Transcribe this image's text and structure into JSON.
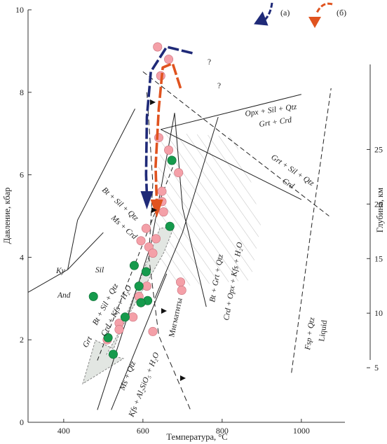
{
  "chart_data": {
    "type": "scatter",
    "title": "",
    "xlabel": "Температура, °C",
    "ylabel": "Давление, кбар",
    "y2label": "Глубина, км",
    "xlim": [
      310,
      1110
    ],
    "ylim": [
      0,
      10
    ],
    "y2lim": [
      0,
      37.8
    ],
    "x_ticks": [
      "400",
      "600",
      "800",
      "1000"
    ],
    "y_ticks": [
      "0",
      "2",
      "4",
      "6",
      "8",
      "10"
    ],
    "y2_ticks": [
      "5",
      "10",
      "15",
      "20",
      "25"
    ],
    "x_tick_values": [
      400,
      600,
      800,
      1000
    ],
    "y_tick_values": [
      0,
      2,
      4,
      6,
      8,
      10
    ],
    "y2_tick_values": [
      5,
      10,
      15,
      20,
      25
    ],
    "grid": false,
    "legend": {
      "position": "top-right",
      "items": [
        {
          "label": "(а)",
          "color": "#1f2a78"
        },
        {
          "label": "(б)",
          "color": "#e0531f"
        }
      ]
    },
    "lines": {
      "ky_and": [
        [
          310,
          3.15
        ],
        [
          410,
          3.7
        ]
      ],
      "and_sil": [
        [
          410,
          3.7
        ],
        [
          435,
          4.9
        ],
        [
          580,
          7.6
        ]
      ],
      "ky_sil": [
        [
          410,
          3.7
        ],
        [
          500,
          4.6
        ]
      ],
      "opx_sil_qtz": [
        [
          645,
          7.1
        ],
        [
          1000,
          7.95
        ]
      ],
      "grt_crd": [
        [
          645,
          7.1
        ],
        [
          1000,
          5.4
        ]
      ],
      "bt_grt_qtz": [
        [
          680,
          7.5
        ],
        [
          700,
          5.2
        ],
        [
          760,
          2.8
        ]
      ],
      "crd_opx_kfs": [
        [
          790,
          7.4
        ],
        [
          700,
          4.6
        ],
        [
          630,
          3.0
        ]
      ],
      "ms_qtz": [
        [
          485,
          0.3
        ],
        [
          620,
          4.3
        ],
        [
          680,
          7.5
        ]
      ],
      "kfs_alsio5": [
        [
          520,
          0.3
        ],
        [
          660,
          3.6
        ]
      ],
      "bt_sil_qtz": [
        [
          485,
          1.5
        ],
        [
          680,
          6.3
        ]
      ],
      "fsp_qtz": [
        [
          975,
          1.2
        ],
        [
          1035,
          5.4
        ],
        [
          1075,
          8.1
        ]
      ],
      "migmatites": [
        [
          610,
          8.0
        ],
        [
          625,
          5.8
        ],
        [
          615,
          4.0
        ],
        [
          640,
          2.1
        ],
        [
          720,
          0.3
        ]
      ],
      "upper_right_dashed": [
        [
          600,
          8.5
        ],
        [
          760,
          7.3
        ],
        [
          1070,
          5.0
        ]
      ]
    },
    "series": [
      {
        "name": "",
        "marker": "pink",
        "color": "#f4a0a8",
        "points": [
          [
            637,
            9.1
          ],
          [
            665,
            8.8
          ],
          [
            645,
            8.4
          ],
          [
            640,
            6.9
          ],
          [
            665,
            6.6
          ],
          [
            690,
            6.05
          ],
          [
            648,
            5.6
          ],
          [
            648,
            5.35
          ],
          [
            652,
            5.1
          ],
          [
            633,
            4.45
          ],
          [
            608,
            4.7
          ],
          [
            595,
            4.4
          ],
          [
            615,
            4.25
          ],
          [
            625,
            4.1
          ],
          [
            610,
            3.3
          ],
          [
            590,
            3.05
          ],
          [
            595,
            2.9
          ],
          [
            575,
            2.55
          ],
          [
            540,
            2.4
          ],
          [
            540,
            2.25
          ],
          [
            510,
            2.0
          ],
          [
            625,
            2.2
          ],
          [
            695,
            3.4
          ],
          [
            698,
            3.2
          ]
        ]
      },
      {
        "name": "",
        "marker": "green",
        "color": "#159a4c",
        "points": [
          [
            673,
            6.35
          ],
          [
            668,
            4.75
          ],
          [
            578,
            3.8
          ],
          [
            608,
            3.65
          ],
          [
            590,
            3.3
          ],
          [
            612,
            2.95
          ],
          [
            595,
            2.9
          ],
          [
            475,
            3.05
          ],
          [
            555,
            2.55
          ],
          [
            512,
            2.05
          ],
          [
            525,
            1.65
          ]
        ]
      }
    ],
    "paths": [
      {
        "label": "(а)",
        "color": "#1f2a78",
        "points": [
          [
            725,
            8.95
          ],
          [
            660,
            9.1
          ],
          [
            620,
            8.5
          ],
          [
            610,
            7.4
          ],
          [
            608,
            6.0
          ],
          [
            610,
            5.5
          ]
        ]
      },
      {
        "label": "(б)",
        "color": "#e0531f",
        "points": [
          [
            695,
            8.1
          ],
          [
            675,
            8.7
          ],
          [
            650,
            8.6
          ],
          [
            640,
            7.6
          ],
          [
            632,
            6.2
          ],
          [
            635,
            5.3
          ]
        ]
      }
    ],
    "labels": {
      "ky": "Ky",
      "and": "And",
      "sil": "Sil",
      "opx": "Opx + Sil + Qtz",
      "grt_crd": "Grt + Crd",
      "grt_sil_qtz": "Grt + Sil + Qtz",
      "crd": "Crd",
      "bt_sil_qtz_top": "Bt + Sil + Qtz",
      "ms_crd": "Ms + Crd",
      "bt_sil_qtz_low": "Bt + Sil + Qtz",
      "crd_kfs_h2o": "Crd + Kfs + H₂O",
      "grt": "Grt",
      "bt_grt_qtz": "Bt + Grt + Qtz",
      "crd_opx_kfs": "Crd + Opx + Kfs + H₂O",
      "migmatites": "Мигматиты",
      "ms_qtz": "Ms + Qtz",
      "kfs_alsio5": "Kfs + Al₂SiO₅ + H₂O",
      "fsp_qtz": "Fsp + Qtz",
      "liquid": "Liquid",
      "q1": "?",
      "q2": "?"
    }
  }
}
